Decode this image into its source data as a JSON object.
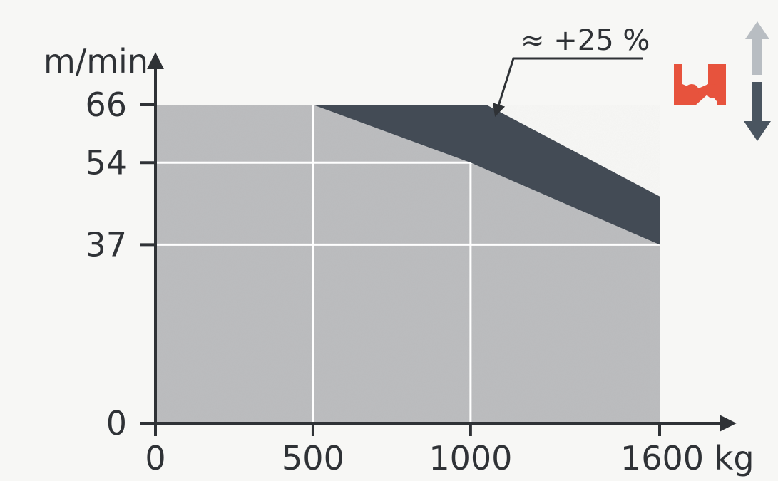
{
  "chart_data": {
    "type": "area",
    "title": "",
    "xlabel": "",
    "ylabel": "",
    "x_unit": "kg",
    "y_unit": "m/min",
    "xlim": [
      0,
      1600
    ],
    "ylim": [
      0,
      66
    ],
    "xticks": [
      0,
      500,
      1000,
      1600
    ],
    "xtick_labels": [
      "0",
      "500",
      "1000",
      "1600 kg"
    ],
    "yticks": [
      0,
      37,
      54,
      66
    ],
    "ytick_labels": [
      "0",
      "37",
      "54",
      "66"
    ],
    "grid": true,
    "series": [
      {
        "color": "#bcbdbf",
        "points": [
          [
            0,
            66
          ],
          [
            500,
            66
          ],
          [
            1000,
            54
          ],
          [
            1600,
            37
          ]
        ]
      },
      {
        "color": "#434b55",
        "points": [
          [
            500,
            66
          ],
          [
            1050,
            66
          ],
          [
            1600,
            47
          ],
          [
            1600,
            37
          ],
          [
            1000,
            54
          ]
        ]
      }
    ],
    "annotations": [
      {
        "text": "≈ +25 %",
        "points_to": [
          1080,
          64
        ]
      }
    ]
  },
  "icons": {
    "hoist_icon": {
      "name": "hoist-hook-icon",
      "color": "#e7533d"
    },
    "direction_icon": {
      "name": "up-down-arrow-icon",
      "up_color": "#b8bdc2",
      "down_color": "#4a5560"
    }
  }
}
